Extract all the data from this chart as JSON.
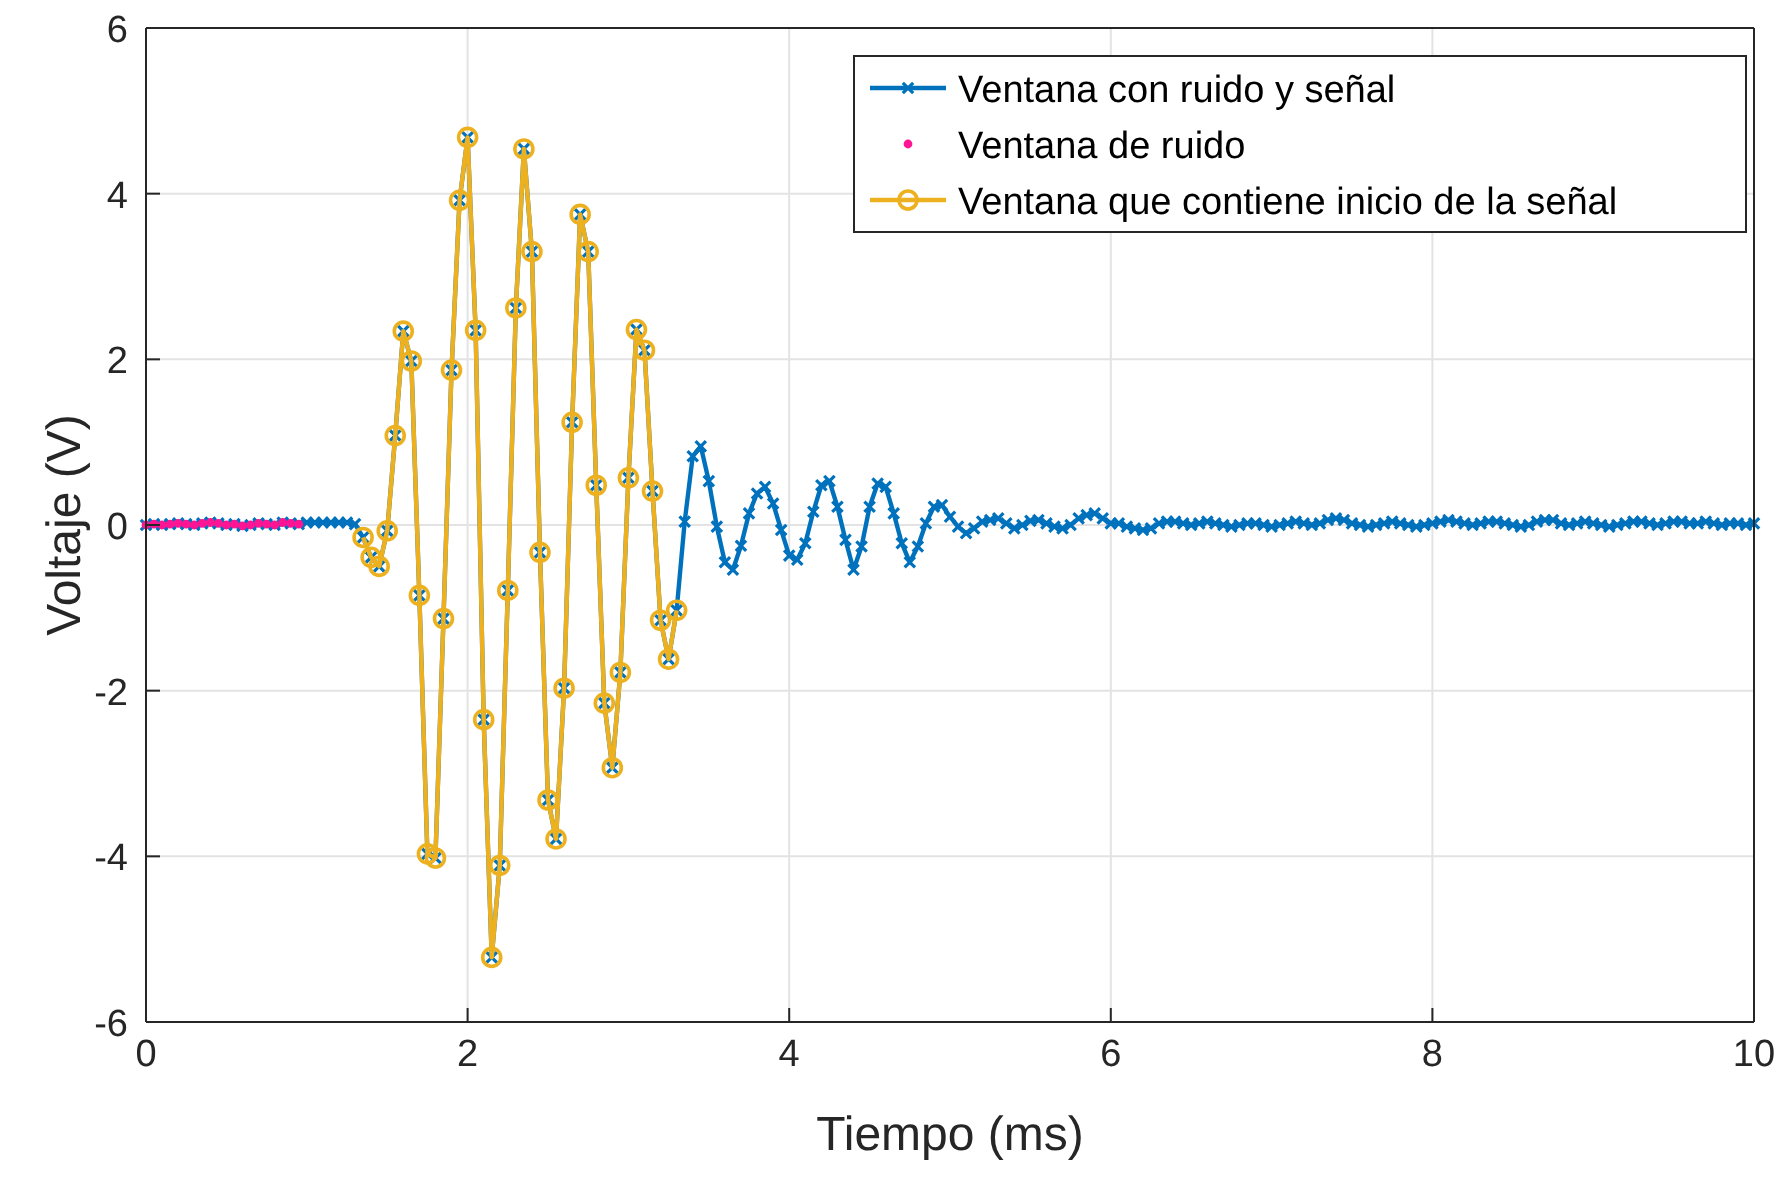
{
  "chart_data": {
    "type": "line",
    "xlabel": "Tiempo (ms)",
    "ylabel": "Voltaje (V)",
    "xlim": [
      0,
      10
    ],
    "ylim": [
      -6,
      6
    ],
    "xticks": [
      0,
      2,
      4,
      6,
      8,
      10
    ],
    "yticks": [
      -6,
      -4,
      -2,
      0,
      2,
      4,
      6
    ],
    "grid": true,
    "legend": "top right",
    "series": [
      {
        "name": "Ventana con ruido y señal",
        "color": "#0072bd",
        "marker": "cross",
        "x": [
          0,
          0.05,
          0.1,
          0.15,
          0.2,
          0.25,
          0.3,
          0.35,
          0.4,
          0.45,
          0.5,
          0.55,
          0.6,
          0.65,
          0.7,
          0.75,
          0.8,
          0.85,
          0.9,
          0.95,
          1,
          1.05,
          1.1,
          1.15,
          1.2,
          1.25,
          1.3,
          1.35,
          1.4,
          1.45,
          1.5,
          1.55,
          1.6,
          1.65,
          1.7,
          1.75,
          1.8,
          1.85,
          1.9,
          1.95,
          2,
          2.05,
          2.1,
          2.15,
          2.2,
          2.25,
          2.3,
          2.35,
          2.4,
          2.45,
          2.5,
          2.55,
          2.6,
          2.65,
          2.7,
          2.75,
          2.8,
          2.85,
          2.9,
          2.95,
          3,
          3.05,
          3.1,
          3.15,
          3.2,
          3.25,
          3.3,
          3.35,
          3.4,
          3.45,
          3.5,
          3.55,
          3.6,
          3.65,
          3.7,
          3.75,
          3.8,
          3.85,
          3.9,
          3.95,
          4,
          4.05,
          4.1,
          4.15,
          4.2,
          4.25,
          4.3,
          4.35,
          4.4,
          4.45,
          4.5,
          4.55,
          4.6,
          4.65,
          4.7,
          4.75,
          4.8,
          4.85,
          4.9,
          4.95,
          5,
          5.05,
          5.1,
          5.15,
          5.2,
          5.25,
          5.3,
          5.35,
          5.4,
          5.45,
          5.5,
          5.55,
          5.6,
          5.65,
          5.7,
          5.75,
          5.8,
          5.85,
          5.9,
          5.95,
          6,
          6.05,
          6.1,
          6.15,
          6.2,
          6.25,
          6.3,
          6.35,
          6.4,
          6.45,
          6.5,
          6.55,
          6.6,
          6.65,
          6.7,
          6.75,
          6.8,
          6.85,
          6.9,
          6.95,
          7,
          7.05,
          7.1,
          7.15,
          7.2,
          7.25,
          7.3,
          7.35,
          7.4,
          7.45,
          7.5,
          7.55,
          7.6,
          7.65,
          7.7,
          7.75,
          7.8,
          7.85,
          7.9,
          7.95,
          8,
          8.05,
          8.1,
          8.15,
          8.2,
          8.25,
          8.3,
          8.35,
          8.4,
          8.45,
          8.5,
          8.55,
          8.6,
          8.65,
          8.7,
          8.75,
          8.8,
          8.85,
          8.9,
          8.95,
          9,
          9.05,
          9.1,
          9.15,
          9.2,
          9.25,
          9.3,
          9.35,
          9.4,
          9.45,
          9.5,
          9.55,
          9.6,
          9.65,
          9.7,
          9.75,
          9.8,
          9.85,
          9.9,
          9.95,
          10
        ],
        "values": [
          0,
          0.01,
          0,
          0.01,
          0.02,
          0.01,
          0,
          0.02,
          0.03,
          0.02,
          0,
          0.01,
          -0.01,
          0,
          0.02,
          0.01,
          0,
          0.03,
          0.02,
          0.01,
          0.03,
          0.03,
          0.03,
          0.03,
          0.03,
          0.03,
          0.01,
          -0.15,
          -0.39,
          -0.5,
          -0.07,
          1.08,
          2.34,
          1.98,
          -0.85,
          -3.97,
          -4.02,
          -1.13,
          1.87,
          3.92,
          4.68,
          2.35,
          -2.35,
          -5.22,
          -4.11,
          -0.79,
          2.62,
          4.54,
          3.3,
          -0.33,
          -3.32,
          -3.79,
          -1.97,
          1.24,
          3.75,
          3.3,
          0.48,
          -2.15,
          -2.93,
          -1.78,
          0.57,
          2.36,
          2.11,
          0.41,
          -1.15,
          -1.62,
          -1.03,
          0.04,
          0.83,
          0.95,
          0.53,
          -0.02,
          -0.45,
          -0.54,
          -0.25,
          0.14,
          0.38,
          0.46,
          0.26,
          -0.06,
          -0.37,
          -0.42,
          -0.22,
          0.16,
          0.48,
          0.53,
          0.22,
          -0.18,
          -0.54,
          -0.26,
          0.22,
          0.5,
          0.46,
          0.14,
          -0.22,
          -0.45,
          -0.26,
          0.02,
          0.22,
          0.24,
          0.1,
          -0.02,
          -0.1,
          -0.04,
          0.04,
          0.06,
          0.08,
          0.02,
          -0.04,
          0,
          0.05,
          0.06,
          0.02,
          -0.02,
          -0.04,
          0,
          0.08,
          0.12,
          0.14,
          0.08,
          0.02,
          0.02,
          -0.02,
          -0.04,
          -0.06,
          -0.04,
          0.02,
          0.04,
          0.04,
          0.02,
          0,
          0.02,
          0.04,
          0.02,
          0,
          -0.02,
          0,
          0.02,
          0.02,
          0,
          -0.02,
          0,
          0.02,
          0.04,
          0.02,
          0,
          0.02,
          0.06,
          0.08,
          0.06,
          0.02,
          0,
          -0.02,
          0,
          0.02,
          0.04,
          0.02,
          0,
          -0.02,
          0,
          0.02,
          0.04,
          0.06,
          0.04,
          0.02,
          0,
          0.02,
          0.04,
          0.04,
          0.02,
          0,
          -0.02,
          0,
          0.04,
          0.06,
          0.06,
          0.02,
          0,
          0.02,
          0.04,
          0.02,
          0,
          -0.02,
          0,
          0.02,
          0.04,
          0.04,
          0.02,
          0,
          0.02,
          0.04,
          0.04,
          0.02,
          0.02,
          0.04,
          0.02,
          0,
          0.02,
          0.02,
          0,
          0.02
        ]
      },
      {
        "name": "Ventana de ruido",
        "color": "#ff1493",
        "type": "scatter",
        "marker": "circle",
        "x": [
          0,
          0.05,
          0.1,
          0.15,
          0.2,
          0.25,
          0.3,
          0.35,
          0.4,
          0.45,
          0.5,
          0.55,
          0.6,
          0.65,
          0.7,
          0.75,
          0.8,
          0.85,
          0.9,
          0.95
        ],
        "values": [
          0,
          0.01,
          0,
          0.01,
          0.02,
          0.01,
          0,
          0.02,
          0.03,
          0.02,
          0,
          0.01,
          -0.01,
          0,
          0.02,
          0.01,
          0,
          0.03,
          0.02,
          0.01
        ]
      },
      {
        "name": "Ventana que contiene inicio de la señal",
        "color": "#edb120",
        "marker": "circle",
        "x": [
          1.35,
          1.4,
          1.45,
          1.5,
          1.55,
          1.6,
          1.65,
          1.7,
          1.75,
          1.8,
          1.85,
          1.9,
          1.95,
          2,
          2.05,
          2.1,
          2.15,
          2.2,
          2.25,
          2.3,
          2.35,
          2.4,
          2.45,
          2.5,
          2.55,
          2.6,
          2.65,
          2.7,
          2.75,
          2.8,
          2.85,
          2.9,
          2.95,
          3,
          3.05,
          3.1,
          3.15,
          3.2,
          3.25,
          3.3
        ],
        "values": [
          -0.15,
          -0.39,
          -0.5,
          -0.07,
          1.08,
          2.34,
          1.98,
          -0.85,
          -3.97,
          -4.02,
          -1.13,
          1.87,
          3.92,
          4.68,
          2.35,
          -2.35,
          -5.22,
          -4.11,
          -0.79,
          2.62,
          4.54,
          3.3,
          -0.33,
          -3.32,
          -3.79,
          -1.97,
          1.24,
          3.75,
          3.3,
          0.48,
          -2.15,
          -2.93,
          -1.78,
          0.57,
          2.36,
          2.11,
          0.41,
          -1.15,
          -1.62,
          -1.03
        ]
      }
    ]
  }
}
